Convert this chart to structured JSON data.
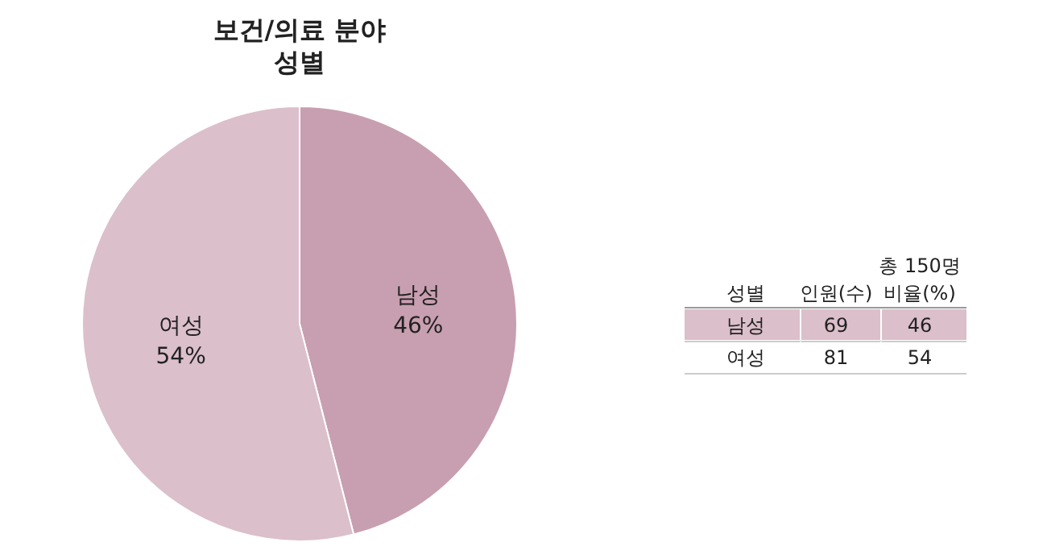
{
  "chart_data": [
    {
      "type": "pie",
      "title": "보건/의료 분야",
      "subtitle": "성별",
      "categories": [
        "남성",
        "여성"
      ],
      "values": [
        46,
        54
      ],
      "colors": [
        "#c89fb0",
        "#dbbfca"
      ],
      "value_labels": [
        "46%",
        "54%"
      ],
      "legend": false
    },
    {
      "type": "other",
      "xlabel": "성별",
      "annotations": [
        "총 150명"
      ],
      "categories": [
        "남성",
        "여성"
      ],
      "colors": [
        "#dbbfca",
        null
      ],
      "series": [
        {
          "name": "인원(수)",
          "values": [
            69,
            81
          ]
        },
        {
          "name": "비율(%)",
          "values": [
            46,
            54
          ]
        }
      ],
      "data_labels": true
    }
  ]
}
